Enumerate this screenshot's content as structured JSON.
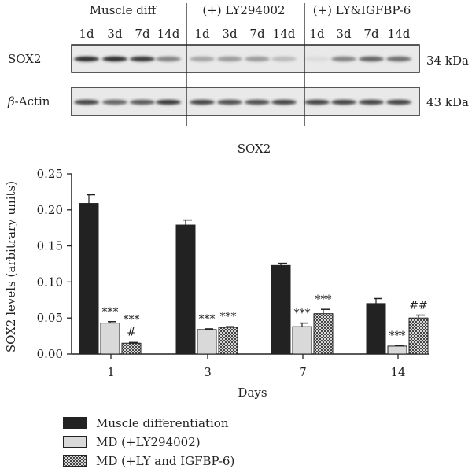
{
  "blot": {
    "groups": [
      "Muscle diff",
      "(+) LY294002",
      "(+) LY&IGFBP-6"
    ],
    "time_labels": [
      "1d",
      "3d",
      "7d",
      "14d"
    ],
    "rows": [
      {
        "label": "SOX2",
        "size": "34 kDa",
        "intensity": [
          [
            0.85,
            0.85,
            0.8,
            0.45
          ],
          [
            0.3,
            0.35,
            0.35,
            0.2
          ],
          [
            0.05,
            0.45,
            0.6,
            0.55
          ]
        ]
      },
      {
        "label_prefix": "β",
        "label_suffix": "-Actin",
        "size": "43 kDa",
        "intensity": [
          [
            0.75,
            0.6,
            0.65,
            0.8
          ],
          [
            0.75,
            0.7,
            0.7,
            0.75
          ],
          [
            0.75,
            0.75,
            0.75,
            0.75
          ]
        ]
      }
    ]
  },
  "chart_data": {
    "type": "bar",
    "title": "SOX2",
    "xlabel": "Days",
    "ylabel": "SOX2 levels (arbitrary units)",
    "categories": [
      "1",
      "3",
      "7",
      "14"
    ],
    "ylim": [
      0,
      0.25
    ],
    "yticks": [
      "0.00",
      "0.05",
      "0.10",
      "0.15",
      "0.20",
      "0.25"
    ],
    "series": [
      {
        "name": "Muscle differentiation",
        "color": "#222222",
        "fill": "solid-dark",
        "values": [
          0.209,
          0.179,
          0.123,
          0.07
        ],
        "errors": [
          0.012,
          0.007,
          0.003,
          0.007
        ],
        "annotations": [
          "",
          "",
          "",
          ""
        ]
      },
      {
        "name": "MD (+LY294002)",
        "color": "#d9d9d9",
        "fill": "solid-light",
        "values": [
          0.043,
          0.034,
          0.038,
          0.011
        ],
        "errors": [
          0.002,
          0.001,
          0.005,
          0.001
        ],
        "annotations": [
          "***",
          "***",
          "***",
          "***"
        ]
      },
      {
        "name": "MD (+LY and IGFBP-6)",
        "color": "#555555",
        "fill": "checkered",
        "values": [
          0.015,
          0.037,
          0.056,
          0.05
        ],
        "errors": [
          0.001,
          0.001,
          0.006,
          0.004
        ],
        "annotations": [
          "***\n#",
          "***",
          "***",
          "##"
        ]
      }
    ]
  }
}
